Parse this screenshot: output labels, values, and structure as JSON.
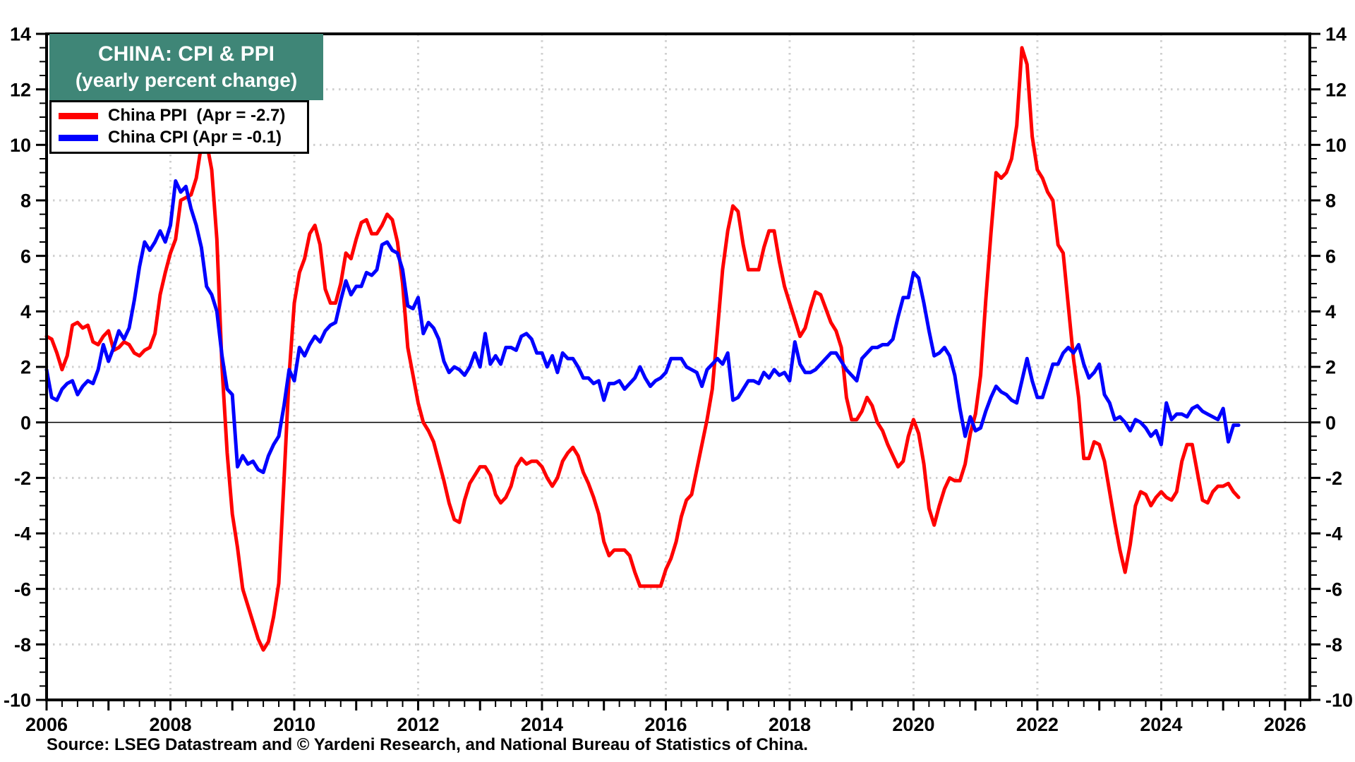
{
  "title": {
    "line1": "CHINA: CPI & PPI",
    "line2": "(yearly percent change)",
    "bg_color": "#3F8677",
    "text_color": "#FFFFFF"
  },
  "legend": {
    "items": [
      {
        "label": "China PPI  (Apr = -2.7)",
        "color": "#FF0000"
      },
      {
        "label": "China CPI (Apr = -0.1)",
        "color": "#0000FF"
      }
    ]
  },
  "source": {
    "text": "Source: LSEG Datastream and © Yardeni Research, and National Bureau of Statistics of China."
  },
  "chart_data": {
    "type": "line",
    "title": "CHINA: CPI & PPI (yearly percent change)",
    "xlabel": "",
    "ylabel": "",
    "xlim": [
      2006,
      2026.4
    ],
    "ylim": [
      -10,
      14
    ],
    "y_major_step": 2,
    "y_minor_step": 0.5,
    "x_major_step": 1,
    "x_minor_step": 0.25,
    "x_label_years": [
      2006,
      2008,
      2010,
      2012,
      2014,
      2016,
      2018,
      2020,
      2022,
      2024,
      2026
    ],
    "y_tick_labels": [
      14,
      12,
      10,
      8,
      6,
      4,
      2,
      0,
      -2,
      -4,
      -6,
      -8,
      -10
    ],
    "grid": true,
    "grid_color": "#cfcfcf",
    "zero_line": true,
    "zero_line_color": "#000000",
    "frame_color": "#000000",
    "legend_position": "top-left",
    "x_start_year": 2006,
    "x_start_month": 1,
    "points_per_year": 12,
    "last_point": "April 2025",
    "series": [
      {
        "name": "China PPI",
        "color": "#FF0000",
        "latest": -2.7,
        "values": [
          3.1,
          3.0,
          2.5,
          1.9,
          2.4,
          3.5,
          3.6,
          3.4,
          3.5,
          2.9,
          2.8,
          3.1,
          3.3,
          2.6,
          2.7,
          2.9,
          2.8,
          2.5,
          2.4,
          2.6,
          2.7,
          3.2,
          4.6,
          5.4,
          6.1,
          6.6,
          8.0,
          8.1,
          8.2,
          8.8,
          10.0,
          10.1,
          9.1,
          6.6,
          2.0,
          -1.1,
          -3.3,
          -4.5,
          -6.0,
          -6.6,
          -7.2,
          -7.8,
          -8.2,
          -7.9,
          -7.0,
          -5.8,
          -2.1,
          1.7,
          4.3,
          5.4,
          5.9,
          6.8,
          7.1,
          6.4,
          4.8,
          4.3,
          4.3,
          5.0,
          6.1,
          5.9,
          6.6,
          7.2,
          7.3,
          6.8,
          6.8,
          7.1,
          7.5,
          7.3,
          6.5,
          5.0,
          2.7,
          1.7,
          0.7,
          0.0,
          -0.3,
          -0.7,
          -1.4,
          -2.1,
          -2.9,
          -3.5,
          -3.6,
          -2.8,
          -2.2,
          -1.9,
          -1.6,
          -1.6,
          -1.9,
          -2.6,
          -2.9,
          -2.7,
          -2.3,
          -1.6,
          -1.3,
          -1.5,
          -1.4,
          -1.4,
          -1.6,
          -2.0,
          -2.3,
          -2.0,
          -1.4,
          -1.1,
          -0.9,
          -1.2,
          -1.8,
          -2.2,
          -2.7,
          -3.3,
          -4.3,
          -4.8,
          -4.6,
          -4.6,
          -4.6,
          -4.8,
          -5.4,
          -5.9,
          -5.9,
          -5.9,
          -5.9,
          -5.9,
          -5.3,
          -4.9,
          -4.3,
          -3.4,
          -2.8,
          -2.6,
          -1.7,
          -0.8,
          0.1,
          1.2,
          3.3,
          5.5,
          6.9,
          7.8,
          7.6,
          6.4,
          5.5,
          5.5,
          5.5,
          6.3,
          6.9,
          6.9,
          5.8,
          4.9,
          4.3,
          3.7,
          3.1,
          3.4,
          4.1,
          4.7,
          4.6,
          4.1,
          3.6,
          3.3,
          2.7,
          0.9,
          0.1,
          0.1,
          0.4,
          0.9,
          0.6,
          0.0,
          -0.3,
          -0.8,
          -1.2,
          -1.6,
          -1.4,
          -0.5,
          0.1,
          -0.4,
          -1.5,
          -3.1,
          -3.7,
          -3.0,
          -2.4,
          -2.0,
          -2.1,
          -2.1,
          -1.5,
          -0.4,
          0.3,
          1.7,
          4.4,
          6.8,
          9.0,
          8.8,
          9.0,
          9.5,
          10.7,
          13.5,
          12.9,
          10.3,
          9.1,
          8.8,
          8.3,
          8.0,
          6.4,
          6.1,
          4.2,
          2.3,
          0.9,
          -1.3,
          -1.3,
          -0.7,
          -0.8,
          -1.4,
          -2.5,
          -3.6,
          -4.6,
          -5.4,
          -4.4,
          -3.0,
          -2.5,
          -2.6,
          -3.0,
          -2.7,
          -2.5,
          -2.7,
          -2.8,
          -2.5,
          -1.4,
          -0.8,
          -0.8,
          -1.8,
          -2.8,
          -2.9,
          -2.5,
          -2.3,
          -2.3,
          -2.2,
          -2.5,
          -2.7
        ]
      },
      {
        "name": "China CPI",
        "color": "#0000FF",
        "latest": -0.1,
        "values": [
          1.9,
          0.9,
          0.8,
          1.2,
          1.4,
          1.5,
          1.0,
          1.3,
          1.5,
          1.4,
          1.9,
          2.8,
          2.2,
          2.7,
          3.3,
          3.0,
          3.4,
          4.4,
          5.6,
          6.5,
          6.2,
          6.5,
          6.9,
          6.5,
          7.1,
          8.7,
          8.3,
          8.5,
          7.7,
          7.1,
          6.3,
          4.9,
          4.6,
          4.0,
          2.4,
          1.2,
          1.0,
          -1.6,
          -1.2,
          -1.5,
          -1.4,
          -1.7,
          -1.8,
          -1.2,
          -0.8,
          -0.5,
          0.6,
          1.9,
          1.5,
          2.7,
          2.4,
          2.8,
          3.1,
          2.9,
          3.3,
          3.5,
          3.6,
          4.4,
          5.1,
          4.6,
          4.9,
          4.9,
          5.4,
          5.3,
          5.5,
          6.4,
          6.5,
          6.2,
          6.1,
          5.5,
          4.2,
          4.1,
          4.5,
          3.2,
          3.6,
          3.4,
          3.0,
          2.2,
          1.8,
          2.0,
          1.9,
          1.7,
          2.0,
          2.5,
          2.0,
          3.2,
          2.1,
          2.4,
          2.1,
          2.7,
          2.7,
          2.6,
          3.1,
          3.2,
          3.0,
          2.5,
          2.5,
          2.0,
          2.4,
          1.8,
          2.5,
          2.3,
          2.3,
          2.0,
          1.6,
          1.6,
          1.4,
          1.5,
          0.8,
          1.4,
          1.4,
          1.5,
          1.2,
          1.4,
          1.6,
          2.0,
          1.6,
          1.3,
          1.5,
          1.6,
          1.8,
          2.3,
          2.3,
          2.3,
          2.0,
          1.9,
          1.8,
          1.3,
          1.9,
          2.1,
          2.3,
          2.1,
          2.5,
          0.8,
          0.9,
          1.2,
          1.5,
          1.5,
          1.4,
          1.8,
          1.6,
          1.9,
          1.7,
          1.8,
          1.5,
          2.9,
          2.1,
          1.8,
          1.8,
          1.9,
          2.1,
          2.3,
          2.5,
          2.5,
          2.2,
          1.9,
          1.7,
          1.5,
          2.3,
          2.5,
          2.7,
          2.7,
          2.8,
          2.8,
          3.0,
          3.8,
          4.5,
          4.5,
          5.4,
          5.2,
          4.3,
          3.3,
          2.4,
          2.5,
          2.7,
          2.4,
          1.7,
          0.5,
          -0.5,
          0.2,
          -0.3,
          -0.2,
          0.4,
          0.9,
          1.3,
          1.1,
          1.0,
          0.8,
          0.7,
          1.5,
          2.3,
          1.5,
          0.9,
          0.9,
          1.5,
          2.1,
          2.1,
          2.5,
          2.7,
          2.5,
          2.8,
          2.1,
          1.6,
          1.8,
          2.1,
          1.0,
          0.7,
          0.1,
          0.2,
          0.0,
          -0.3,
          0.1,
          0.0,
          -0.2,
          -0.5,
          -0.3,
          -0.8,
          0.7,
          0.1,
          0.3,
          0.3,
          0.2,
          0.5,
          0.6,
          0.4,
          0.3,
          0.2,
          0.1,
          0.5,
          -0.7,
          -0.1,
          -0.1
        ]
      }
    ]
  }
}
